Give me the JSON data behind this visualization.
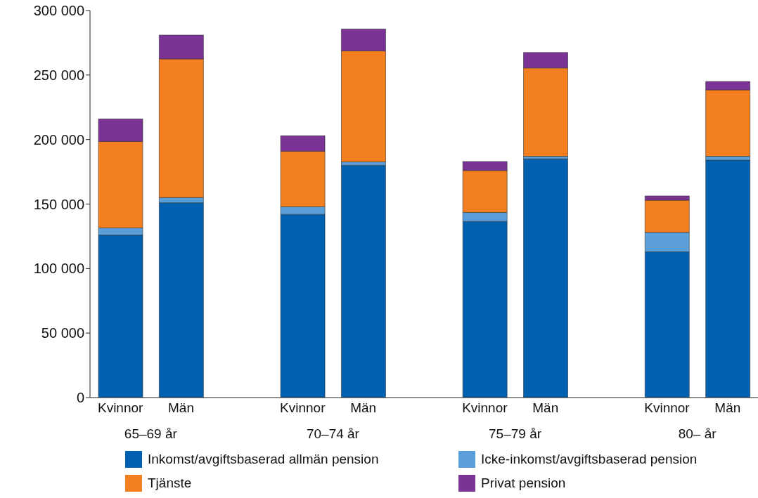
{
  "chart_data": {
    "type": "bar",
    "stacked": true,
    "categories": [
      "Kvinnor",
      "Män",
      null,
      "Kvinnor",
      "Män",
      null,
      "Kvinnor",
      "Män",
      null,
      "Kvinnor",
      "Män"
    ],
    "series": [
      {
        "name": "Inkomst/avgiftsbaserad allmän pension",
        "color": "#0061b1",
        "values": [
          126000,
          151000,
          null,
          142000,
          180000,
          null,
          136500,
          185000,
          null,
          113000,
          184000
        ]
      },
      {
        "name": "Icke-inkomst/avgiftsbaserad pension",
        "color": "#5a9fd9",
        "values": [
          5500,
          4000,
          null,
          6000,
          2700,
          null,
          7000,
          2000,
          null,
          15000,
          3000
        ]
      },
      {
        "name": "Tjänste",
        "color": "#f47f20",
        "values": [
          67000,
          107500,
          null,
          43000,
          86000,
          null,
          32500,
          68500,
          null,
          25000,
          51500
        ]
      },
      {
        "name": "Privat pension",
        "color": "#7b3496",
        "values": [
          17500,
          18500,
          null,
          12000,
          17000,
          null,
          7000,
          12000,
          null,
          3300,
          6500
        ]
      }
    ],
    "annotations": [
      "65–69 år",
      "70–74 år",
      "75–79 år",
      "80– år"
    ],
    "ylim": [
      0,
      300000
    ],
    "yticks": [
      0,
      50000,
      100000,
      150000,
      200000,
      250000,
      300000
    ],
    "grid": false,
    "legend": "bottom"
  }
}
